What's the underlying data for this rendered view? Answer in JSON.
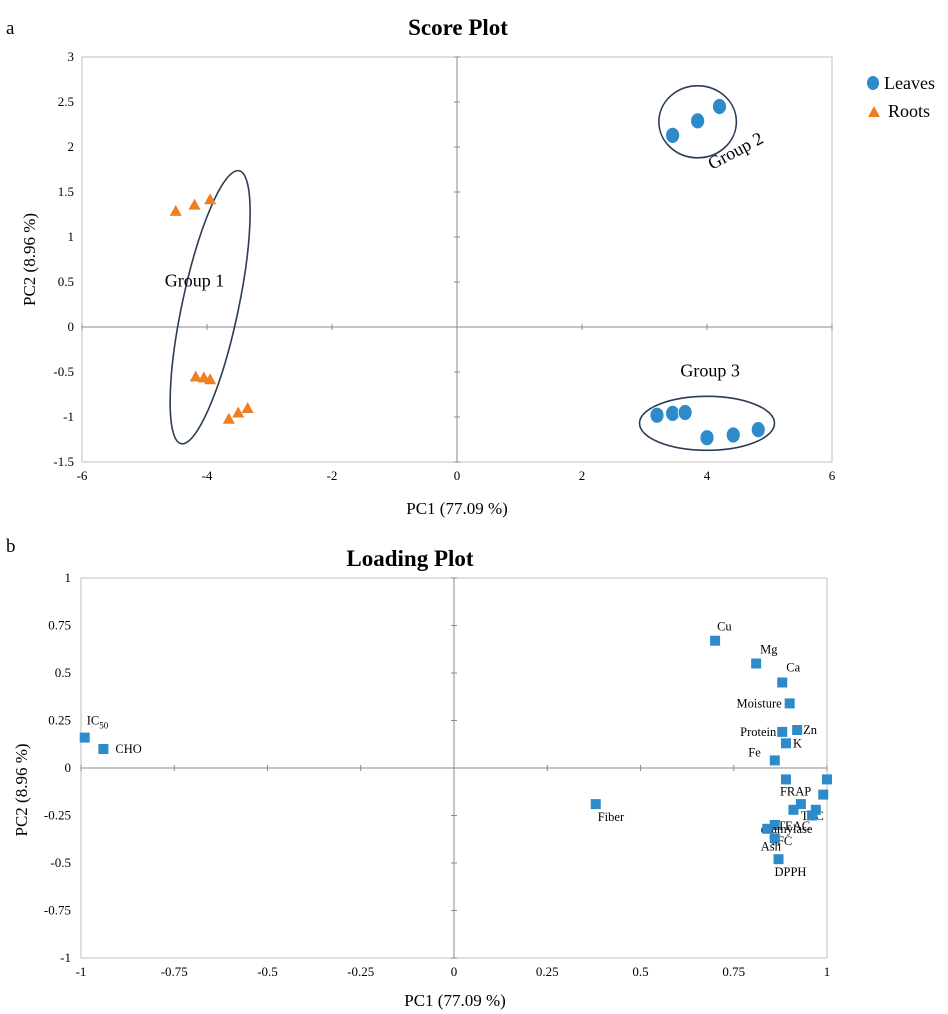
{
  "panels": {
    "a": "a",
    "b": "b"
  },
  "chart_data": [
    {
      "type": "scatter",
      "title": "Score Plot",
      "xlabel": "PC1 (77.09 %)",
      "ylabel": "PC2 (8.96 %)",
      "xlim": [
        -6,
        6
      ],
      "ylim": [
        -1.5,
        3
      ],
      "xticks": [
        "-6",
        "-4",
        "-2",
        "0",
        "2",
        "4",
        "6"
      ],
      "yticks": [
        "-1.5",
        "-1",
        "-0.5",
        "0",
        "0.5",
        "1",
        "1.5",
        "2",
        "2.5",
        "3"
      ],
      "legend_position": "top-right",
      "series": [
        {
          "name": "Leaves",
          "marker": "circle",
          "color": "#2E8BC9",
          "points": [
            [
              3.45,
              2.13
            ],
            [
              3.85,
              2.29
            ],
            [
              4.2,
              2.45
            ],
            [
              3.2,
              -0.98
            ],
            [
              3.45,
              -0.96
            ],
            [
              3.65,
              -0.95
            ],
            [
              4.0,
              -1.23
            ],
            [
              4.42,
              -1.2
            ],
            [
              4.82,
              -1.14
            ]
          ]
        },
        {
          "name": "Roots",
          "marker": "triangle",
          "color": "#F07F22",
          "points": [
            [
              -4.5,
              1.29
            ],
            [
              -4.2,
              1.36
            ],
            [
              -3.95,
              1.42
            ],
            [
              -4.18,
              -0.55
            ],
            [
              -4.05,
              -0.56
            ],
            [
              -3.95,
              -0.58
            ],
            [
              -3.65,
              -1.02
            ],
            [
              -3.5,
              -0.95
            ],
            [
              -3.35,
              -0.9
            ]
          ]
        }
      ],
      "groups": [
        {
          "label": "Group 1",
          "center": [
            -3.95,
            0.22
          ],
          "rx": 0.45,
          "ry": 1.55,
          "angle_deg": 12
        },
        {
          "label": "Group 2",
          "center": [
            3.85,
            2.28
          ],
          "rx": 0.62,
          "ry": 0.4,
          "angle_deg": 0
        },
        {
          "label": "Group 3",
          "center": [
            4.0,
            -1.07
          ],
          "rx": 1.08,
          "ry": 0.3,
          "angle_deg": 0
        }
      ]
    },
    {
      "type": "scatter",
      "title": "Loading Plot",
      "xlabel": "PC1 (77.09 %)",
      "ylabel": "PC2 (8.96 %)",
      "xlim": [
        -1,
        1
      ],
      "ylim": [
        -1,
        1
      ],
      "xticks": [
        "-1",
        "-0.75",
        "-0.5",
        "-0.25",
        "0",
        "0.25",
        "0.5",
        "0.75",
        "1"
      ],
      "yticks": [
        "-1",
        "-0.75",
        "-0.5",
        "-0.25",
        "0",
        "0.25",
        "0.5",
        "0.75",
        "1"
      ],
      "marker": "square",
      "color": "#2E8BC9",
      "points": [
        {
          "label": "IC50",
          "x": -0.99,
          "y": 0.16
        },
        {
          "label": "CHO",
          "x": -0.94,
          "y": 0.1
        },
        {
          "label": "Fiber",
          "x": 0.38,
          "y": -0.19
        },
        {
          "label": "Cu",
          "x": 0.7,
          "y": 0.67
        },
        {
          "label": "Mg",
          "x": 0.81,
          "y": 0.55
        },
        {
          "label": "Ca",
          "x": 0.88,
          "y": 0.45
        },
        {
          "label": "Moisture",
          "x": 0.9,
          "y": 0.34
        },
        {
          "label": "Protein",
          "x": 0.88,
          "y": 0.19
        },
        {
          "label": "Zn",
          "x": 0.92,
          "y": 0.2
        },
        {
          "label": "K",
          "x": 0.89,
          "y": 0.13
        },
        {
          "label": "Fe",
          "x": 0.86,
          "y": 0.04
        },
        {
          "label": "FRAP",
          "x": 0.89,
          "y": -0.06
        },
        {
          "label": "TPC",
          "x": 0.93,
          "y": -0.19
        },
        {
          "label": "TEAC",
          "x": 0.91,
          "y": -0.22
        },
        {
          "label": "α-amylase",
          "x": 0.86,
          "y": -0.3
        },
        {
          "label": "TFC",
          "x": 0.84,
          "y": -0.32
        },
        {
          "label": "Ash",
          "x": 0.86,
          "y": -0.37
        },
        {
          "label": "DPPH",
          "x": 0.87,
          "y": -0.48
        },
        {
          "label": "",
          "x": 1.0,
          "y": -0.06
        },
        {
          "label": "",
          "x": 0.99,
          "y": -0.14
        },
        {
          "label": "",
          "x": 0.97,
          "y": -0.22
        },
        {
          "label": "",
          "x": 0.96,
          "y": -0.25
        }
      ]
    }
  ]
}
